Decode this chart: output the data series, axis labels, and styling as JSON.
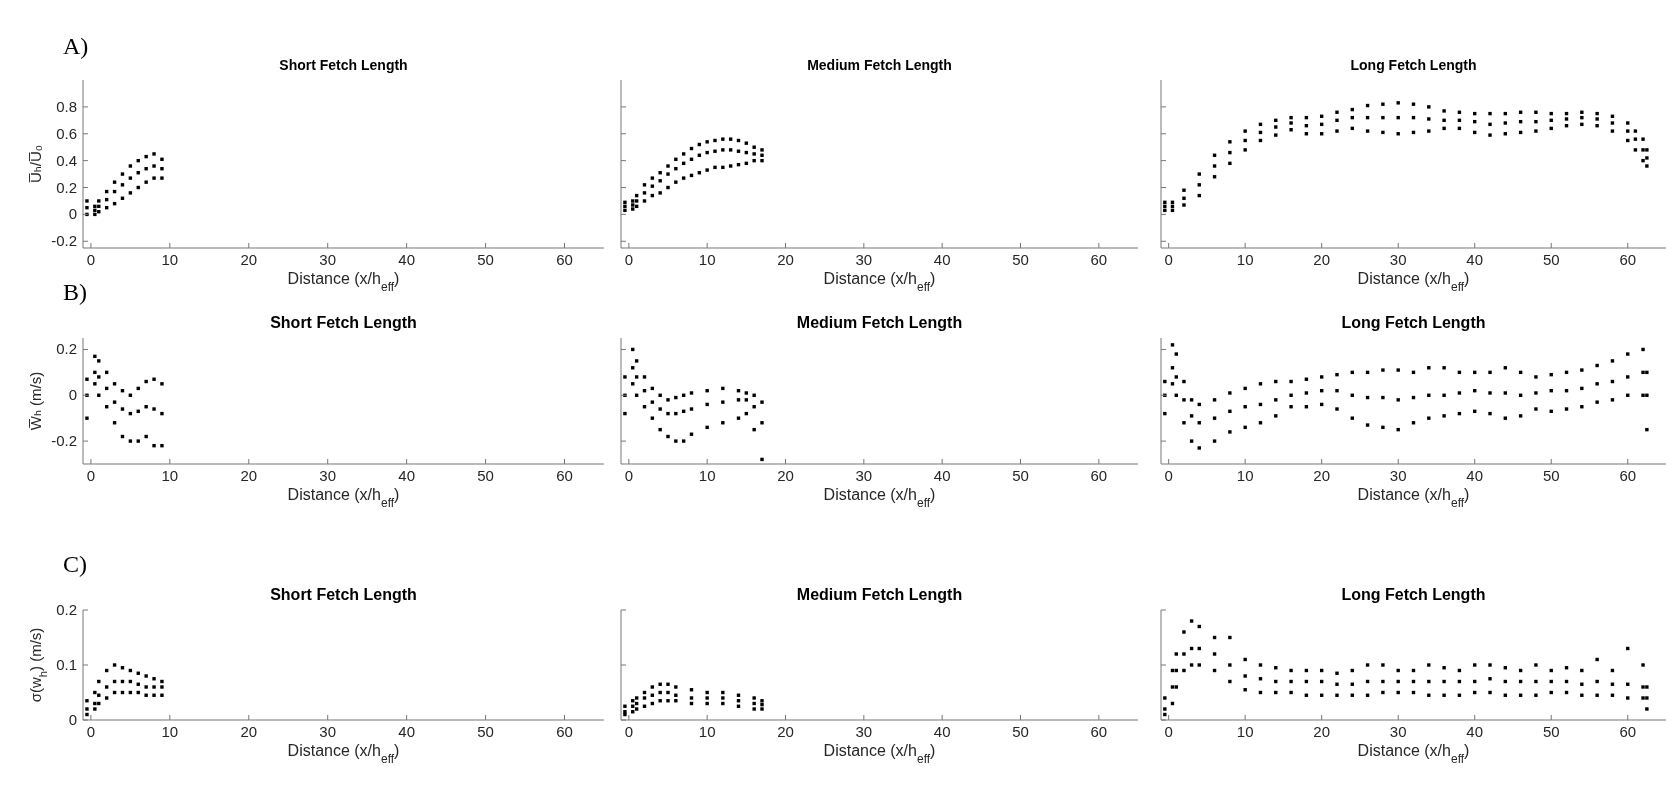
{
  "chart_data": [
    {
      "type": "scatter",
      "title": "Short Fetch Length",
      "xlabel": "Distance (x/h$_{eff}$)",
      "ylabel": "U̅ₕ/U̅₀",
      "annotations": [
        "A)"
      ],
      "marker": "square",
      "xlim": [
        -1,
        65
      ],
      "xticks": [
        0,
        10,
        20,
        30,
        40,
        50,
        60
      ],
      "ylim": [
        -0.25,
        1.0
      ],
      "yticks": [
        -0.2,
        0,
        0.2,
        0.4,
        0.6,
        0.8
      ],
      "series": [
        {
          "color": "#000000",
          "x": [
            -0.5,
            0.5,
            1,
            2,
            3,
            4,
            5,
            6,
            7,
            8,
            9
          ],
          "values": [
            0.0,
            0.0,
            0.02,
            0.05,
            0.08,
            0.12,
            0.16,
            0.2,
            0.24,
            0.27,
            0.27
          ]
        },
        {
          "color": "#000000",
          "x": [
            -0.5,
            0.5,
            1,
            2,
            3,
            4,
            5,
            6,
            7,
            8,
            9
          ],
          "values": [
            0.05,
            0.03,
            0.06,
            0.11,
            0.17,
            0.22,
            0.27,
            0.31,
            0.34,
            0.36,
            0.34
          ]
        },
        {
          "color": "#000000",
          "x": [
            -0.5,
            0.5,
            1,
            2,
            3,
            4,
            5,
            6,
            7,
            8,
            9
          ],
          "values": [
            0.1,
            0.06,
            0.1,
            0.17,
            0.24,
            0.3,
            0.36,
            0.4,
            0.43,
            0.45,
            0.41
          ]
        }
      ]
    },
    {
      "type": "scatter",
      "title": "Medium Fetch Length",
      "xlabel": "Distance (x/h$_{eff}$)",
      "marker": "square",
      "tick_labels": "x",
      "xlim": [
        -1,
        65
      ],
      "xticks": [
        0,
        10,
        20,
        30,
        40,
        50,
        60
      ],
      "ylim": [
        -0.25,
        1.0
      ],
      "yticks": [
        -0.2,
        0,
        0.2,
        0.4,
        0.6,
        0.8
      ],
      "series": [
        {
          "color": "#000000",
          "x": [
            -0.5,
            0.5,
            1,
            2,
            3,
            4,
            5,
            6,
            7,
            8,
            9,
            10,
            11,
            12,
            13,
            14,
            15,
            16,
            17
          ],
          "values": [
            0.03,
            0.04,
            0.06,
            0.1,
            0.14,
            0.16,
            0.2,
            0.24,
            0.27,
            0.29,
            0.31,
            0.33,
            0.35,
            0.35,
            0.36,
            0.37,
            0.38,
            0.4,
            0.4
          ]
        },
        {
          "color": "#000000",
          "x": [
            -0.5,
            0.5,
            1,
            2,
            3,
            4,
            5,
            6,
            7,
            8,
            9,
            10,
            11,
            12,
            13,
            14,
            15,
            16,
            17
          ],
          "values": [
            0.06,
            0.07,
            0.1,
            0.16,
            0.21,
            0.25,
            0.3,
            0.34,
            0.38,
            0.41,
            0.44,
            0.46,
            0.47,
            0.48,
            0.48,
            0.47,
            0.46,
            0.45,
            0.44
          ]
        },
        {
          "color": "#000000",
          "x": [
            -0.5,
            0.5,
            1,
            2,
            3,
            4,
            5,
            6,
            7,
            8,
            9,
            10,
            11,
            12,
            13,
            14,
            15,
            16,
            17
          ],
          "values": [
            0.09,
            0.1,
            0.14,
            0.22,
            0.27,
            0.31,
            0.36,
            0.41,
            0.45,
            0.49,
            0.52,
            0.54,
            0.55,
            0.56,
            0.56,
            0.55,
            0.53,
            0.5,
            0.48
          ]
        }
      ]
    },
    {
      "type": "scatter",
      "title": "Long Fetch Length",
      "xlabel": "Distance (x/h$_{eff}$)",
      "marker": "square",
      "tick_labels": "x",
      "xlim": [
        -1,
        65
      ],
      "xticks": [
        0,
        10,
        20,
        30,
        40,
        50,
        60
      ],
      "ylim": [
        -0.25,
        1.0
      ],
      "yticks": [
        -0.2,
        0,
        0.2,
        0.4,
        0.6,
        0.8
      ],
      "series": [
        {
          "color": "#000000",
          "x": [
            -0.5,
            0.5,
            2,
            4,
            6,
            8,
            10,
            12,
            14,
            16,
            18,
            20,
            22,
            24,
            26,
            28,
            30,
            32,
            34,
            36,
            38,
            40,
            42,
            44,
            46,
            48,
            50,
            52,
            54,
            56,
            58,
            60,
            61,
            62,
            62.5
          ],
          "values": [
            0.03,
            0.03,
            0.07,
            0.14,
            0.28,
            0.38,
            0.48,
            0.55,
            0.59,
            0.63,
            0.6,
            0.6,
            0.62,
            0.64,
            0.62,
            0.61,
            0.6,
            0.61,
            0.62,
            0.64,
            0.64,
            0.61,
            0.59,
            0.6,
            0.61,
            0.62,
            0.64,
            0.66,
            0.67,
            0.66,
            0.62,
            0.55,
            0.48,
            0.4,
            0.36
          ]
        },
        {
          "color": "#000000",
          "x": [
            -0.5,
            0.5,
            2,
            4,
            6,
            8,
            10,
            12,
            14,
            16,
            18,
            20,
            22,
            24,
            26,
            28,
            30,
            32,
            34,
            36,
            38,
            40,
            42,
            44,
            46,
            48,
            50,
            52,
            54,
            56,
            58,
            60,
            61,
            62,
            62.5
          ],
          "values": [
            0.06,
            0.06,
            0.12,
            0.22,
            0.36,
            0.46,
            0.55,
            0.61,
            0.65,
            0.68,
            0.66,
            0.67,
            0.7,
            0.72,
            0.72,
            0.72,
            0.72,
            0.72,
            0.71,
            0.7,
            0.7,
            0.69,
            0.67,
            0.68,
            0.69,
            0.69,
            0.7,
            0.71,
            0.72,
            0.71,
            0.68,
            0.62,
            0.56,
            0.48,
            0.42
          ]
        },
        {
          "color": "#000000",
          "x": [
            -0.5,
            0.5,
            2,
            4,
            6,
            8,
            10,
            12,
            14,
            16,
            18,
            20,
            22,
            24,
            26,
            28,
            30,
            32,
            34,
            36,
            38,
            40,
            42,
            44,
            46,
            48,
            50,
            52,
            54,
            56,
            58,
            60,
            61,
            62,
            62.5
          ],
          "values": [
            0.09,
            0.09,
            0.18,
            0.3,
            0.44,
            0.54,
            0.62,
            0.67,
            0.7,
            0.72,
            0.72,
            0.73,
            0.76,
            0.78,
            0.81,
            0.82,
            0.83,
            0.82,
            0.8,
            0.77,
            0.76,
            0.75,
            0.75,
            0.75,
            0.76,
            0.76,
            0.75,
            0.75,
            0.76,
            0.75,
            0.73,
            0.68,
            0.62,
            0.56,
            0.48
          ]
        }
      ]
    },
    {
      "type": "scatter",
      "title": "Short Fetch Length",
      "xlabel": "Distance (x/h$_{eff}$)",
      "ylabel": "W̅ₕ (m/s)",
      "annotations": [
        "B)"
      ],
      "marker": "square",
      "xlim": [
        -1,
        65
      ],
      "xticks": [
        0,
        10,
        20,
        30,
        40,
        50,
        60
      ],
      "ylim": [
        -0.3,
        0.25
      ],
      "yticks": [
        -0.2,
        0,
        0.2
      ],
      "series": [
        {
          "color": "#000000",
          "x": [
            -0.5,
            0.5,
            1,
            2,
            3,
            4,
            5,
            6,
            7,
            8,
            9
          ],
          "values": [
            -0.1,
            0.05,
            0.0,
            -0.05,
            -0.12,
            -0.18,
            -0.2,
            -0.2,
            -0.18,
            -0.22,
            -0.22
          ]
        },
        {
          "color": "#000000",
          "x": [
            -0.5,
            0.5,
            1,
            2,
            3,
            4,
            5,
            6,
            7,
            8,
            9
          ],
          "values": [
            0,
            0.1,
            0.08,
            0.03,
            -0.03,
            -0.06,
            -0.08,
            -0.07,
            -0.05,
            -0.06,
            -0.08
          ]
        },
        {
          "color": "#000000",
          "x": [
            -0.5,
            0.5,
            1,
            2,
            3,
            4,
            5,
            6,
            7,
            8,
            9
          ],
          "values": [
            0.07,
            0.17,
            0.15,
            0.1,
            0.05,
            0.02,
            0.0,
            0.03,
            0.06,
            0.07,
            0.05
          ]
        }
      ]
    },
    {
      "type": "scatter",
      "title": "Medium Fetch Length",
      "xlabel": "Distance (x/h$_{eff}$)",
      "marker": "square",
      "tick_labels": "x",
      "xlim": [
        -1,
        65
      ],
      "xticks": [
        0,
        10,
        20,
        30,
        40,
        50,
        60
      ],
      "ylim": [
        -0.3,
        0.25
      ],
      "yticks": [
        -0.2,
        0,
        0.2
      ],
      "series": [
        {
          "color": "#000000",
          "x": [
            -0.5,
            0.5,
            1,
            2,
            3,
            4,
            5,
            6,
            7,
            8,
            10,
            12,
            14,
            15,
            16,
            17
          ],
          "values": [
            -0.08,
            0.05,
            0.0,
            -0.05,
            -0.1,
            -0.15,
            -0.18,
            -0.2,
            -0.2,
            -0.17,
            -0.14,
            -0.12,
            -0.1,
            -0.08,
            -0.15,
            -0.28
          ]
        },
        {
          "color": "#000000",
          "x": [
            -0.5,
            0.5,
            1,
            2,
            3,
            4,
            5,
            6,
            7,
            8,
            10,
            12,
            14,
            15,
            16,
            17
          ],
          "values": [
            0,
            0.12,
            0.08,
            0.02,
            -0.03,
            -0.06,
            -0.08,
            -0.08,
            -0.07,
            -0.06,
            -0.04,
            -0.03,
            -0.02,
            -0.02,
            -0.05,
            -0.12
          ]
        },
        {
          "color": "#000000",
          "x": [
            -0.5,
            0.5,
            1,
            2,
            3,
            4,
            5,
            6,
            7,
            8,
            10,
            12,
            14,
            15,
            16,
            17
          ],
          "values": [
            0.08,
            0.2,
            0.15,
            0.08,
            0.03,
            0.0,
            -0.02,
            -0.01,
            0.0,
            0.01,
            0.02,
            0.03,
            0.02,
            0.01,
            0.0,
            -0.03
          ]
        }
      ]
    },
    {
      "type": "scatter",
      "title": "Long Fetch Length",
      "xlabel": "Distance (x/h$_{eff}$)",
      "marker": "square",
      "tick_labels": "x",
      "xlim": [
        -1,
        65
      ],
      "xticks": [
        0,
        10,
        20,
        30,
        40,
        50,
        60
      ],
      "ylim": [
        -0.3,
        0.25
      ],
      "yticks": [
        -0.2,
        0,
        0.2
      ],
      "series": [
        {
          "color": "#000000",
          "x": [
            -0.5,
            0.5,
            1,
            2,
            3,
            4,
            6,
            8,
            10,
            12,
            14,
            16,
            18,
            20,
            22,
            24,
            26,
            28,
            30,
            32,
            34,
            36,
            38,
            40,
            42,
            44,
            46,
            48,
            50,
            52,
            54,
            56,
            58,
            60,
            62,
            62.5
          ],
          "values": [
            -0.08,
            0.05,
            0.0,
            -0.12,
            -0.2,
            -0.23,
            -0.2,
            -0.16,
            -0.14,
            -0.12,
            -0.09,
            -0.05,
            -0.05,
            -0.04,
            -0.06,
            -0.1,
            -0.13,
            -0.14,
            -0.15,
            -0.12,
            -0.1,
            -0.09,
            -0.08,
            -0.07,
            -0.08,
            -0.1,
            -0.09,
            -0.06,
            -0.07,
            -0.06,
            -0.05,
            -0.03,
            -0.02,
            0.0,
            0.0,
            -0.15
          ]
        },
        {
          "color": "#000000",
          "x": [
            -0.5,
            0.5,
            1,
            2,
            3,
            4,
            6,
            8,
            10,
            12,
            14,
            16,
            18,
            20,
            22,
            24,
            26,
            28,
            30,
            32,
            34,
            36,
            38,
            40,
            42,
            44,
            46,
            48,
            50,
            52,
            54,
            56,
            58,
            60,
            62,
            62.5
          ],
          "values": [
            0,
            0.12,
            0.08,
            -0.02,
            -0.09,
            -0.12,
            -0.1,
            -0.07,
            -0.05,
            -0.04,
            -0.02,
            0.0,
            0.01,
            0.02,
            0.02,
            0.0,
            -0.01,
            -0.01,
            -0.02,
            -0.01,
            0.0,
            0.0,
            0.01,
            0.02,
            0.01,
            0.01,
            0.0,
            0.01,
            0.02,
            0.02,
            0.03,
            0.05,
            0.06,
            0.08,
            0.1,
            0.0
          ]
        },
        {
          "color": "#000000",
          "x": [
            -0.5,
            0.5,
            1,
            2,
            3,
            4,
            6,
            8,
            10,
            12,
            14,
            16,
            18,
            20,
            22,
            24,
            26,
            28,
            30,
            32,
            34,
            36,
            38,
            40,
            42,
            44,
            46,
            48,
            50,
            52,
            54,
            56,
            58,
            60,
            62,
            62.5
          ],
          "values": [
            0.06,
            0.22,
            0.18,
            0.06,
            -0.02,
            -0.04,
            -0.02,
            0.01,
            0.03,
            0.05,
            0.06,
            0.06,
            0.07,
            0.08,
            0.09,
            0.1,
            0.1,
            0.11,
            0.11,
            0.1,
            0.12,
            0.12,
            0.1,
            0.1,
            0.1,
            0.12,
            0.1,
            0.08,
            0.09,
            0.1,
            0.11,
            0.13,
            0.15,
            0.18,
            0.2,
            0.1
          ]
        }
      ]
    },
    {
      "type": "scatter",
      "title": "Short Fetch Length",
      "xlabel": "Distance (x/h$_{eff}$)",
      "ylabel": "σ(w$_{h}$) (m/s)",
      "annotations": [
        "C)"
      ],
      "marker": "square",
      "xlim": [
        -1,
        65
      ],
      "xticks": [
        0,
        10,
        20,
        30,
        40,
        50,
        60
      ],
      "ylim": [
        0,
        0.2
      ],
      "yticks": [
        0,
        0.1,
        0.2
      ],
      "series": [
        {
          "color": "#000000",
          "x": [
            -0.5,
            0.5,
            1,
            2,
            3,
            4,
            5,
            6,
            7,
            8,
            9
          ],
          "values": [
            0.01,
            0.02,
            0.03,
            0.04,
            0.05,
            0.05,
            0.05,
            0.05,
            0.045,
            0.045,
            0.045
          ]
        },
        {
          "color": "#000000",
          "x": [
            -0.5,
            0.5,
            1,
            2,
            3,
            4,
            5,
            6,
            7,
            8,
            9
          ],
          "values": [
            0.02,
            0.03,
            0.045,
            0.06,
            0.07,
            0.07,
            0.07,
            0.065,
            0.06,
            0.06,
            0.06
          ]
        },
        {
          "color": "#000000",
          "x": [
            -0.5,
            0.5,
            1,
            2,
            3,
            4,
            5,
            6,
            7,
            8,
            9
          ],
          "values": [
            0.035,
            0.05,
            0.07,
            0.09,
            0.1,
            0.095,
            0.09,
            0.085,
            0.08,
            0.075,
            0.07
          ]
        }
      ]
    },
    {
      "type": "scatter",
      "title": "Medium Fetch Length",
      "xlabel": "Distance (x/h$_{eff}$)",
      "marker": "square",
      "tick_labels": "x",
      "xlim": [
        -1,
        65
      ],
      "xticks": [
        0,
        10,
        20,
        30,
        40,
        50,
        60
      ],
      "ylim": [
        0,
        0.2
      ],
      "yticks": [
        0,
        0.1,
        0.2
      ],
      "series": [
        {
          "color": "#000000",
          "x": [
            -0.5,
            0.5,
            1,
            2,
            3,
            4,
            5,
            6,
            8,
            10,
            12,
            14,
            16,
            17
          ],
          "values": [
            0.01,
            0.015,
            0.02,
            0.025,
            0.03,
            0.035,
            0.035,
            0.035,
            0.03,
            0.03,
            0.03,
            0.025,
            0.02,
            0.02
          ]
        },
        {
          "color": "#000000",
          "x": [
            -0.5,
            0.5,
            1,
            2,
            3,
            4,
            5,
            6,
            8,
            10,
            12,
            14,
            16,
            17
          ],
          "values": [
            0.015,
            0.025,
            0.03,
            0.04,
            0.045,
            0.05,
            0.05,
            0.045,
            0.04,
            0.04,
            0.04,
            0.035,
            0.03,
            0.028
          ]
        },
        {
          "color": "#000000",
          "x": [
            -0.5,
            0.5,
            1,
            2,
            3,
            4,
            5,
            6,
            8,
            10,
            12,
            14,
            16,
            17
          ],
          "values": [
            0.025,
            0.035,
            0.04,
            0.05,
            0.06,
            0.065,
            0.065,
            0.06,
            0.055,
            0.05,
            0.05,
            0.045,
            0.04,
            0.035
          ]
        }
      ]
    },
    {
      "type": "scatter",
      "title": "Long Fetch Length",
      "xlabel": "Distance (x/h$_{eff}$)",
      "marker": "square",
      "tick_labels": "x",
      "xlim": [
        -1,
        65
      ],
      "xticks": [
        0,
        10,
        20,
        30,
        40,
        50,
        60
      ],
      "ylim": [
        0,
        0.2
      ],
      "yticks": [
        0,
        0.1,
        0.2
      ],
      "series": [
        {
          "color": "#000000",
          "x": [
            -0.5,
            0.5,
            1,
            2,
            3,
            4,
            6,
            8,
            10,
            12,
            14,
            16,
            18,
            20,
            22,
            24,
            26,
            28,
            30,
            32,
            34,
            36,
            38,
            40,
            42,
            44,
            46,
            48,
            50,
            52,
            54,
            56,
            58,
            60,
            62,
            62.5
          ],
          "values": [
            0.01,
            0.03,
            0.06,
            0.09,
            0.1,
            0.1,
            0.09,
            0.07,
            0.055,
            0.05,
            0.05,
            0.05,
            0.045,
            0.045,
            0.045,
            0.045,
            0.045,
            0.05,
            0.05,
            0.05,
            0.045,
            0.045,
            0.045,
            0.05,
            0.05,
            0.045,
            0.045,
            0.045,
            0.05,
            0.05,
            0.045,
            0.045,
            0.045,
            0.04,
            0.04,
            0.02
          ]
        },
        {
          "color": "#000000",
          "x": [
            -0.5,
            0.5,
            1,
            2,
            3,
            4,
            6,
            8,
            10,
            12,
            14,
            16,
            18,
            20,
            22,
            24,
            26,
            28,
            30,
            32,
            34,
            36,
            38,
            40,
            42,
            44,
            46,
            48,
            50,
            52,
            54,
            56,
            58,
            60,
            62,
            62.5
          ],
          "values": [
            0.02,
            0.06,
            0.09,
            0.12,
            0.13,
            0.13,
            0.12,
            0.1,
            0.08,
            0.075,
            0.07,
            0.07,
            0.07,
            0.07,
            0.065,
            0.065,
            0.07,
            0.07,
            0.07,
            0.07,
            0.07,
            0.07,
            0.07,
            0.07,
            0.075,
            0.07,
            0.07,
            0.07,
            0.07,
            0.07,
            0.065,
            0.07,
            0.065,
            0.065,
            0.06,
            0.04
          ]
        },
        {
          "color": "#000000",
          "x": [
            -0.5,
            0.5,
            1,
            2,
            3,
            4,
            6,
            8,
            10,
            12,
            14,
            16,
            18,
            20,
            22,
            24,
            26,
            28,
            30,
            32,
            34,
            36,
            38,
            40,
            42,
            44,
            46,
            48,
            50,
            52,
            54,
            56,
            58,
            60,
            62,
            62.5
          ],
          "values": [
            0.04,
            0.09,
            0.12,
            0.16,
            0.18,
            0.17,
            0.15,
            0.15,
            0.11,
            0.1,
            0.095,
            0.09,
            0.09,
            0.09,
            0.085,
            0.09,
            0.1,
            0.1,
            0.09,
            0.09,
            0.1,
            0.095,
            0.09,
            0.1,
            0.1,
            0.095,
            0.09,
            0.1,
            0.09,
            0.095,
            0.09,
            0.11,
            0.09,
            0.13,
            0.1,
            0.06
          ]
        }
      ]
    }
  ]
}
